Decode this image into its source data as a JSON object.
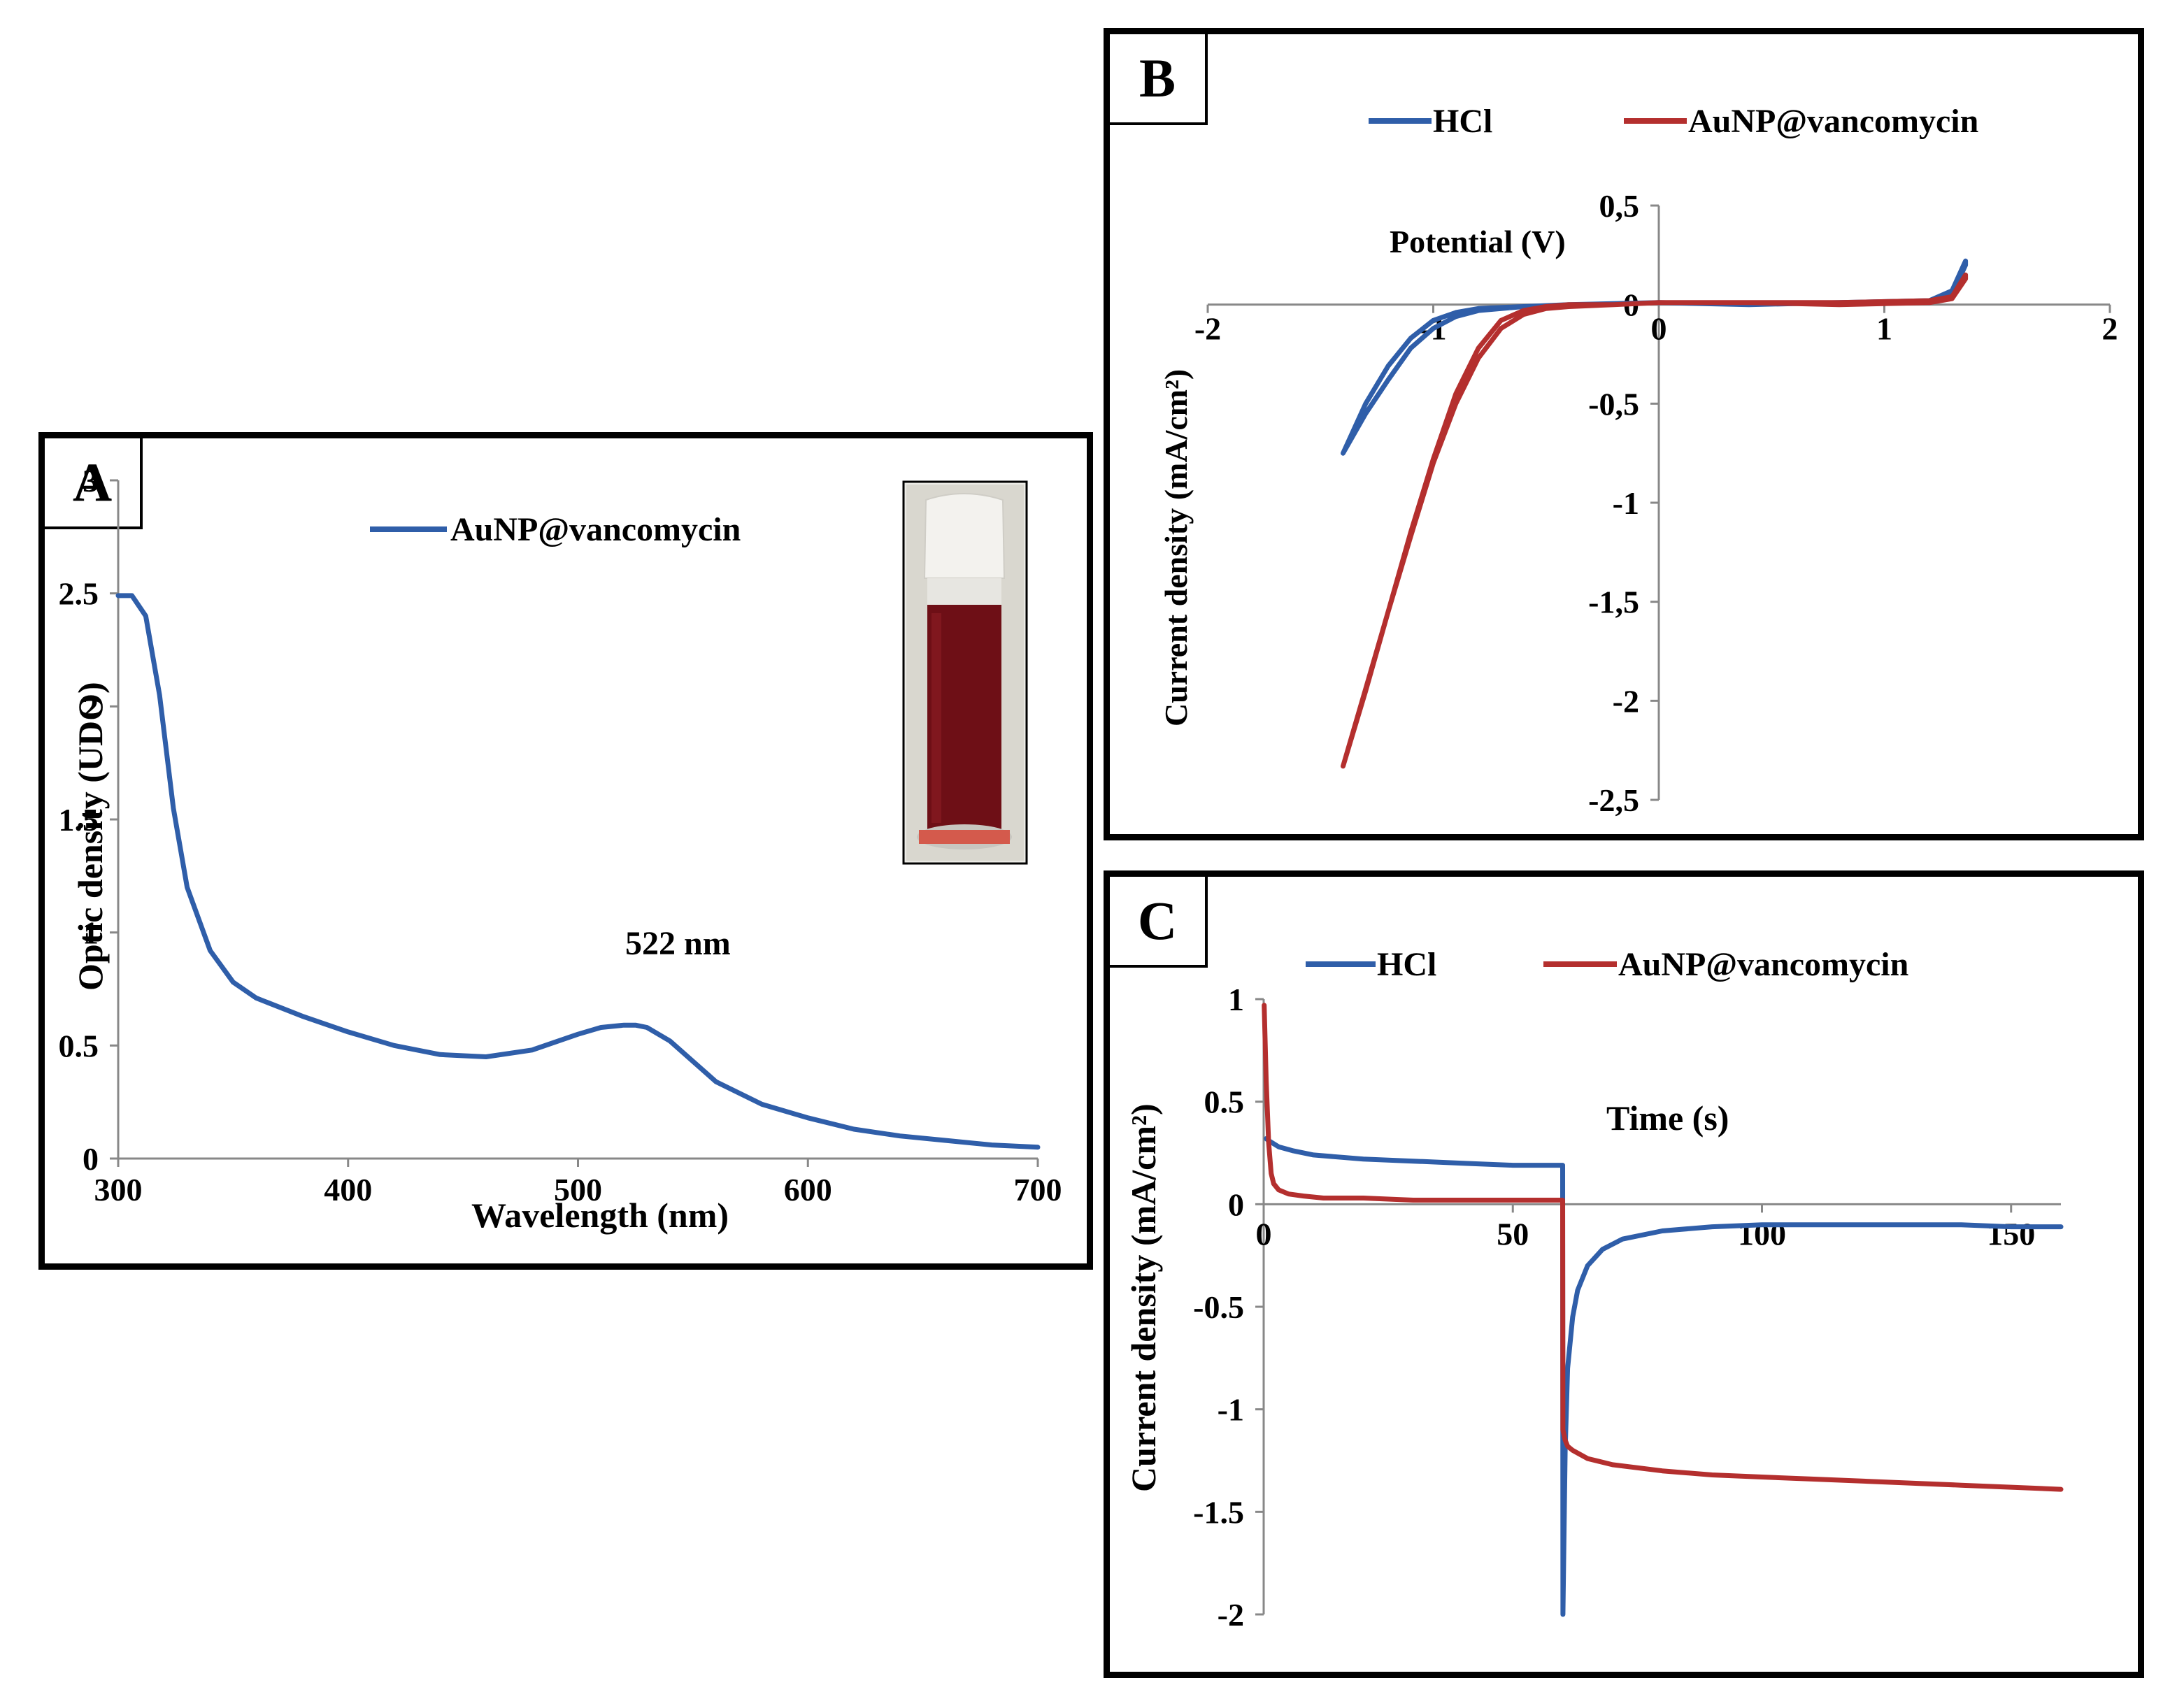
{
  "colors": {
    "blue": "#2f5ea9",
    "red": "#b42f2e",
    "axis": "#888888"
  },
  "panels": {
    "A": {
      "letter": "A",
      "inset_image": "vial-of-red-nanoparticle-solution",
      "chart_data": {
        "type": "line",
        "xlabel": "Wavelength (nm)",
        "ylabel": "Optic density (UDO)",
        "xlim": [
          300,
          700
        ],
        "ylim": [
          0,
          3
        ],
        "xticks": [
          300,
          400,
          500,
          600,
          700
        ],
        "yticks": [
          0,
          0.5,
          1,
          1.5,
          2,
          2.5,
          3
        ],
        "xtick_labels": [
          "300",
          "400",
          "500",
          "600",
          "700"
        ],
        "ytick_labels": [
          "0",
          "0.5",
          "1",
          "1.5",
          "2",
          "2.5",
          "3"
        ],
        "annotation": "522 nm",
        "annotation_at": [
          522,
          0.59
        ],
        "series": [
          {
            "name": "AuNP@vancomycin",
            "color": "blue",
            "x": [
              300,
              306,
              312,
              318,
              324,
              330,
              340,
              350,
              360,
              380,
              400,
              420,
              440,
              460,
              480,
              500,
              510,
              520,
              525,
              530,
              540,
              550,
              560,
              580,
              600,
              620,
              640,
              660,
              680,
              700
            ],
            "y": [
              2.49,
              2.49,
              2.4,
              2.05,
              1.55,
              1.2,
              0.92,
              0.78,
              0.71,
              0.63,
              0.56,
              0.5,
              0.46,
              0.45,
              0.48,
              0.55,
              0.58,
              0.59,
              0.59,
              0.58,
              0.52,
              0.43,
              0.34,
              0.24,
              0.18,
              0.13,
              0.1,
              0.08,
              0.06,
              0.05
            ]
          }
        ]
      }
    },
    "B": {
      "letter": "B",
      "chart_data": {
        "type": "line",
        "xlabel": "Potential (V)",
        "ylabel": "Current density (mA/cm²)",
        "xlim": [
          -2,
          2
        ],
        "ylim": [
          -2.5,
          0.5
        ],
        "xticks": [
          -2,
          -1,
          0,
          1,
          2
        ],
        "yticks": [
          -2.5,
          -2,
          -1.5,
          -1,
          -0.5,
          0,
          0.5
        ],
        "xtick_labels": [
          "-2",
          "-1",
          "0",
          "1",
          "2"
        ],
        "ytick_labels": [
          "-2,5",
          "-2",
          "-1,5",
          "-1",
          "-0,5",
          "0",
          "0,5"
        ],
        "series": [
          {
            "name": "HCl",
            "color": "blue",
            "x": [
              -1.4,
              -1.3,
              -1.2,
              -1.1,
              -1.0,
              -0.9,
              -0.8,
              -0.6,
              -0.4,
              0,
              0.4,
              0.8,
              1.2,
              1.3,
              1.36,
              1.36,
              1.3,
              1.2,
              0.8,
              0.4,
              0,
              -0.4,
              -0.6,
              -0.8,
              -0.9,
              -1.0,
              -1.1,
              -1.2,
              -1.3,
              -1.4
            ],
            "y": [
              -0.75,
              -0.55,
              -0.38,
              -0.22,
              -0.12,
              -0.06,
              -0.03,
              -0.01,
              0,
              0.01,
              0.0,
              0.01,
              0.02,
              0.07,
              0.22,
              0.2,
              0.05,
              0.01,
              0.01,
              0.0,
              0.01,
              0,
              -0.01,
              -0.02,
              -0.04,
              -0.08,
              -0.17,
              -0.31,
              -0.5,
              -0.75
            ]
          },
          {
            "name": "AuNP@vancomycin",
            "color": "red",
            "x": [
              -1.4,
              -1.3,
              -1.2,
              -1.1,
              -1.0,
              -0.9,
              -0.8,
              -0.7,
              -0.6,
              -0.5,
              -0.4,
              -0.2,
              0,
              0.4,
              0.8,
              1.2,
              1.3,
              1.36,
              1.36,
              1.3,
              1.2,
              0.8,
              0.4,
              0,
              -0.2,
              -0.4,
              -0.5,
              -0.6,
              -0.7,
              -0.8,
              -0.9,
              -1.0,
              -1.1,
              -1.2,
              -1.3,
              -1.4
            ],
            "y": [
              -2.33,
              -1.95,
              -1.55,
              -1.15,
              -0.78,
              -0.45,
              -0.22,
              -0.08,
              -0.03,
              -0.01,
              0,
              0,
              0.01,
              0.01,
              0.01,
              0.02,
              0.04,
              0.15,
              0.13,
              0.03,
              0.01,
              0.0,
              0.01,
              0.01,
              0,
              -0.01,
              -0.02,
              -0.05,
              -0.12,
              -0.27,
              -0.5,
              -0.8,
              -1.17,
              -1.55,
              -1.94,
              -2.33
            ]
          }
        ],
        "legend": [
          "HCl",
          "AuNP@vancomycin"
        ]
      }
    },
    "C": {
      "letter": "C",
      "chart_data": {
        "type": "line",
        "xlabel": "Time (s)",
        "ylabel": "Current density (mA/cm²)",
        "xlim": [
          0,
          160
        ],
        "ylim": [
          -2,
          1
        ],
        "xticks": [
          0,
          50,
          100,
          150
        ],
        "yticks": [
          -2,
          -1.5,
          -1,
          -0.5,
          0,
          0.5,
          1
        ],
        "xtick_labels": [
          "0",
          "50",
          "100",
          "150"
        ],
        "ytick_labels": [
          "-2",
          "-1.5",
          "-1",
          "-0.5",
          "0",
          "0.5",
          "1"
        ],
        "series": [
          {
            "name": "HCl",
            "color": "blue",
            "x": [
              0.5,
              1,
              3,
              6,
              10,
              20,
              30,
              40,
              50,
              60,
              60.05,
              60.5,
              61,
              62,
              63,
              65,
              68,
              72,
              80,
              90,
              100,
              110,
              120,
              130,
              140,
              150,
              160
            ],
            "y": [
              0.32,
              0.31,
              0.28,
              0.26,
              0.24,
              0.22,
              0.21,
              0.2,
              0.19,
              0.19,
              -2.0,
              -1.2,
              -0.8,
              -0.55,
              -0.42,
              -0.3,
              -0.22,
              -0.17,
              -0.13,
              -0.11,
              -0.1,
              -0.1,
              -0.1,
              -0.1,
              -0.1,
              -0.11,
              -0.11
            ]
          },
          {
            "name": "AuNP@vancomycin",
            "color": "red",
            "x": [
              0.1,
              0.5,
              1,
              1.5,
              2,
              3,
              5,
              8,
              12,
              20,
              30,
              40,
              50,
              60,
              60.05,
              60.5,
              61,
              62,
              65,
              70,
              80,
              90,
              100,
              110,
              120,
              130,
              140,
              150,
              160
            ],
            "y": [
              0.97,
              0.6,
              0.3,
              0.15,
              0.1,
              0.07,
              0.05,
              0.04,
              0.03,
              0.03,
              0.02,
              0.02,
              0.02,
              0.02,
              -1.1,
              -1.15,
              -1.18,
              -1.2,
              -1.24,
              -1.27,
              -1.3,
              -1.32,
              -1.33,
              -1.34,
              -1.35,
              -1.36,
              -1.37,
              -1.38,
              -1.39
            ]
          }
        ],
        "legend": [
          "HCl",
          "AuNP@vancomycin"
        ]
      }
    }
  }
}
